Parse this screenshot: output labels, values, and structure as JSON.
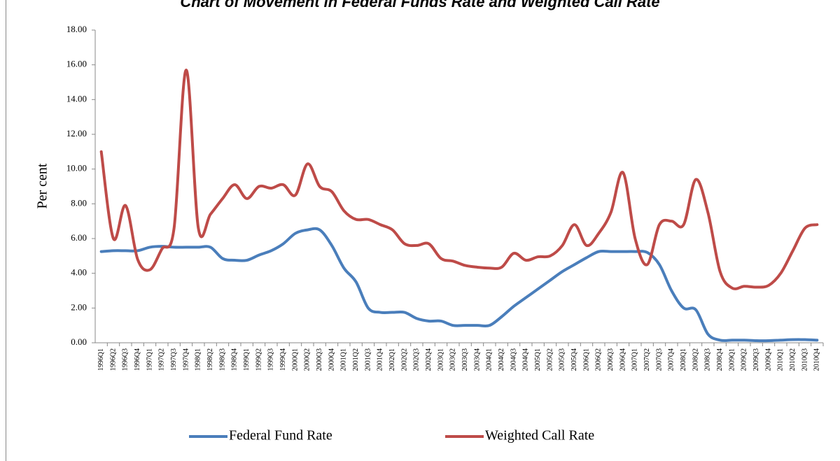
{
  "chart_data": {
    "type": "line",
    "title": "Chart of Movement in Federal Funds Rate and Weighted Call Rate",
    "y_label": "Per cent",
    "categories": [
      "1996Q1",
      "1996Q2",
      "1996Q3",
      "1996Q4",
      "1997Q1",
      "1997Q2",
      "1997Q3",
      "1997Q4",
      "1998Q1",
      "1998Q2",
      "1998Q3",
      "1998Q4",
      "1999Q1",
      "1999Q2",
      "1999Q3",
      "1999Q4",
      "2000Q1",
      "2000Q2",
      "2000Q3",
      "2000Q4",
      "2001Q1",
      "2001Q2",
      "2001Q3",
      "2001Q4",
      "2002Q1",
      "2002Q2",
      "2002Q3",
      "2002Q4",
      "2003Q1",
      "2003Q2",
      "2003Q3",
      "2003Q4",
      "2004Q1",
      "2004Q2",
      "2004Q3",
      "2004Q4",
      "2005Q1",
      "2005Q2",
      "2005Q3",
      "2005Q4",
      "2006Q1",
      "2006Q2",
      "2006Q3",
      "2006Q4",
      "2007Q1",
      "2007Q2",
      "2007Q3",
      "2007Q4",
      "2008Q1",
      "2008Q2",
      "2008Q3",
      "2008Q4",
      "2009Q1",
      "2009Q2",
      "2009Q3",
      "2009Q4",
      "2010Q1",
      "2010Q2",
      "2010Q3",
      "2010Q4"
    ],
    "series": [
      {
        "name": "Federal Fund Rate",
        "color": "#4a7ebb",
        "values": [
          5.25,
          5.3,
          5.3,
          5.3,
          5.5,
          5.55,
          5.5,
          5.5,
          5.5,
          5.5,
          4.85,
          4.75,
          4.75,
          5.05,
          5.3,
          5.7,
          6.3,
          6.5,
          6.5,
          5.6,
          4.3,
          3.5,
          2.0,
          1.75,
          1.75,
          1.75,
          1.4,
          1.25,
          1.25,
          1.0,
          1.0,
          1.0,
          1.0,
          1.5,
          2.1,
          2.6,
          3.1,
          3.6,
          4.1,
          4.5,
          4.9,
          5.25,
          5.25,
          5.25,
          5.25,
          5.2,
          4.5,
          3.0,
          2.0,
          1.9,
          0.5,
          0.15,
          0.15,
          0.15,
          0.12,
          0.12,
          0.15,
          0.18,
          0.18,
          0.15
        ]
      },
      {
        "name": "Weighted Call Rate",
        "color": "#be4b48",
        "values": [
          11.0,
          6.0,
          7.9,
          4.8,
          4.2,
          5.4,
          6.6,
          15.7,
          6.6,
          7.4,
          8.3,
          9.1,
          8.3,
          9.0,
          8.9,
          9.1,
          8.5,
          10.3,
          9.0,
          8.7,
          7.6,
          7.1,
          7.1,
          6.8,
          6.5,
          5.7,
          5.6,
          5.7,
          4.85,
          4.7,
          4.45,
          4.35,
          4.3,
          4.35,
          5.15,
          4.75,
          4.95,
          5.0,
          5.6,
          6.8,
          5.6,
          6.3,
          7.5,
          9.8,
          6.0,
          4.5,
          6.8,
          7.0,
          6.8,
          9.4,
          7.5,
          4.1,
          3.15,
          3.25,
          3.2,
          3.3,
          4.0,
          5.3,
          6.6,
          6.8
        ]
      }
    ],
    "ylim": [
      0,
      18
    ],
    "yticks": [
      {
        "value": 0,
        "label": "0.00"
      },
      {
        "value": 2,
        "label": "2.00"
      },
      {
        "value": 4,
        "label": "4.00"
      },
      {
        "value": 6,
        "label": "6.00"
      },
      {
        "value": 8,
        "label": "8.00"
      },
      {
        "value": 10,
        "label": "10.00"
      },
      {
        "value": 12,
        "label": "12.00"
      },
      {
        "value": 14,
        "label": "14.00"
      },
      {
        "value": 16,
        "label": "16.00"
      },
      {
        "value": 18,
        "label": "18.00"
      }
    ],
    "grid": false,
    "legend": "bottom"
  }
}
